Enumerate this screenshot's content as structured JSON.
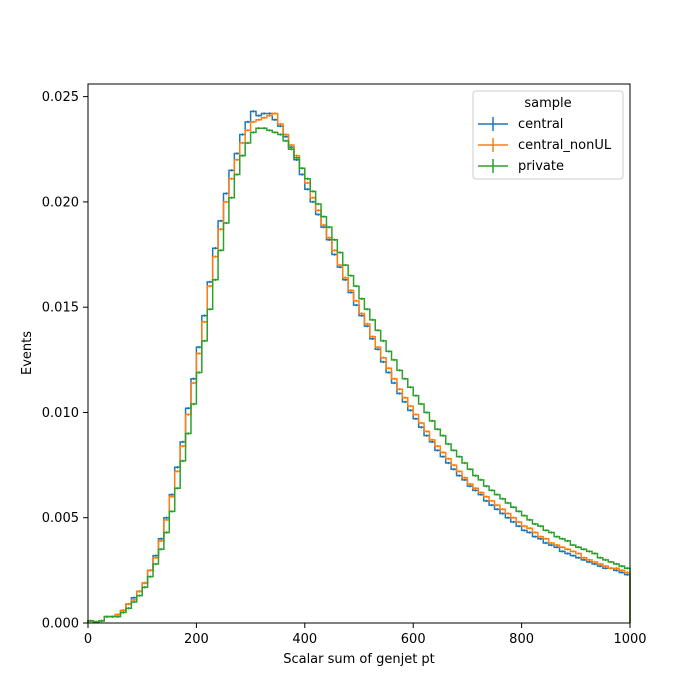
{
  "chart_data": {
    "type": "line",
    "title": "",
    "xlabel": "Scalar sum of genjet pt",
    "ylabel": "Events",
    "xlim": [
      0,
      1000
    ],
    "ylim": [
      0,
      0.0256
    ],
    "grid": false,
    "x_ticks": [
      {
        "value": 0,
        "label": "0"
      },
      {
        "value": 200,
        "label": "200"
      },
      {
        "value": 400,
        "label": "400"
      },
      {
        "value": 600,
        "label": "600"
      },
      {
        "value": 800,
        "label": "800"
      },
      {
        "value": 1000,
        "label": "1000"
      }
    ],
    "y_ticks": [
      {
        "value": 0,
        "label": "0.000"
      },
      {
        "value": 0.005,
        "label": "0.005"
      },
      {
        "value": 0.01,
        "label": "0.010"
      },
      {
        "value": 0.015,
        "label": "0.015"
      },
      {
        "value": 0.02,
        "label": "0.020"
      },
      {
        "value": 0.025,
        "label": "0.025"
      }
    ],
    "legend": {
      "title": "sample",
      "position": "top-right"
    },
    "bin_edges": [
      0,
      10,
      20,
      30,
      40,
      50,
      60,
      70,
      80,
      90,
      100,
      110,
      120,
      130,
      140,
      150,
      160,
      170,
      180,
      190,
      200,
      210,
      220,
      230,
      240,
      250,
      260,
      270,
      280,
      290,
      300,
      310,
      320,
      330,
      340,
      350,
      360,
      370,
      380,
      390,
      400,
      410,
      420,
      430,
      440,
      450,
      460,
      470,
      480,
      490,
      500,
      510,
      520,
      530,
      540,
      550,
      560,
      570,
      580,
      590,
      600,
      610,
      620,
      630,
      640,
      650,
      660,
      670,
      680,
      690,
      700,
      710,
      720,
      730,
      740,
      750,
      760,
      770,
      780,
      790,
      800,
      810,
      820,
      830,
      840,
      850,
      860,
      870,
      880,
      890,
      900,
      910,
      920,
      930,
      940,
      950,
      960,
      970,
      980,
      990,
      1000
    ],
    "series": [
      {
        "name": "central",
        "color": "#1f77b4",
        "values": [
          0.0001,
          5e-05,
          0.0001,
          0.0003,
          0.0003,
          0.0004,
          0.0006,
          0.0009,
          0.0012,
          0.0015,
          0.0019,
          0.0025,
          0.0032,
          0.004,
          0.005,
          0.0061,
          0.0074,
          0.0086,
          0.0102,
          0.0116,
          0.0131,
          0.0146,
          0.0162,
          0.0178,
          0.0191,
          0.0204,
          0.0215,
          0.0223,
          0.0232,
          0.0238,
          0.0243,
          0.0241,
          0.0242,
          0.0242,
          0.0239,
          0.0236,
          0.0231,
          0.0226,
          0.022,
          0.0213,
          0.0206,
          0.02,
          0.0194,
          0.0188,
          0.0182,
          0.0175,
          0.0169,
          0.0163,
          0.0157,
          0.0151,
          0.0146,
          0.0141,
          0.0135,
          0.013,
          0.0124,
          0.0119,
          0.0114,
          0.0109,
          0.0105,
          0.0101,
          0.0097,
          0.0093,
          0.0089,
          0.0086,
          0.0082,
          0.0079,
          0.0076,
          0.0073,
          0.007,
          0.0068,
          0.0065,
          0.0063,
          0.0061,
          0.0058,
          0.0056,
          0.0054,
          0.0052,
          0.005,
          0.0048,
          0.0046,
          0.0044,
          0.0043,
          0.0041,
          0.004,
          0.0038,
          0.0037,
          0.0036,
          0.0034,
          0.0033,
          0.0032,
          0.0031,
          0.003,
          0.0029,
          0.0028,
          0.0027,
          0.0026,
          0.0026,
          0.0025,
          0.0024,
          0.0023
        ]
      },
      {
        "name": "central_nonUL",
        "color": "#ff7f0e",
        "values": [
          0.0001,
          5e-05,
          0.0001,
          0.0003,
          0.0003,
          0.0004,
          0.0006,
          0.0009,
          0.0011,
          0.0015,
          0.0019,
          0.0025,
          0.0031,
          0.0039,
          0.0049,
          0.006,
          0.0072,
          0.0084,
          0.0099,
          0.0114,
          0.0128,
          0.0143,
          0.016,
          0.0174,
          0.0187,
          0.02,
          0.0211,
          0.022,
          0.0228,
          0.0234,
          0.0238,
          0.0239,
          0.024,
          0.0241,
          0.0242,
          0.0237,
          0.0232,
          0.0227,
          0.0222,
          0.0216,
          0.0209,
          0.0202,
          0.0196,
          0.0189,
          0.0183,
          0.0177,
          0.017,
          0.0164,
          0.0158,
          0.0153,
          0.0147,
          0.0142,
          0.0136,
          0.0131,
          0.0126,
          0.0121,
          0.0116,
          0.0111,
          0.0107,
          0.0103,
          0.0099,
          0.0095,
          0.0091,
          0.0087,
          0.0084,
          0.0081,
          0.0078,
          0.0075,
          0.0072,
          0.0069,
          0.0066,
          0.0064,
          0.0062,
          0.006,
          0.0058,
          0.0056,
          0.0054,
          0.0052,
          0.005,
          0.0048,
          0.0046,
          0.0045,
          0.0043,
          0.0041,
          0.004,
          0.0038,
          0.0037,
          0.0036,
          0.0035,
          0.0034,
          0.0033,
          0.0031,
          0.003,
          0.0029,
          0.0028,
          0.0027,
          0.0026,
          0.0026,
          0.0025,
          0.0024
        ]
      },
      {
        "name": "private",
        "color": "#2ca02c",
        "values": [
          0.0001,
          5e-05,
          0.0001,
          0.0003,
          0.0003,
          0.0003,
          0.0005,
          0.0007,
          0.001,
          0.0013,
          0.0017,
          0.0022,
          0.0028,
          0.0035,
          0.0043,
          0.0053,
          0.0064,
          0.0077,
          0.009,
          0.0104,
          0.0119,
          0.0134,
          0.0149,
          0.0163,
          0.0177,
          0.019,
          0.0202,
          0.0213,
          0.0222,
          0.0228,
          0.0233,
          0.0235,
          0.0235,
          0.0234,
          0.0233,
          0.0232,
          0.0229,
          0.0225,
          0.0221,
          0.0216,
          0.0211,
          0.0205,
          0.0199,
          0.0193,
          0.0188,
          0.0182,
          0.0176,
          0.017,
          0.0165,
          0.016,
          0.0154,
          0.0149,
          0.0144,
          0.0139,
          0.0134,
          0.0129,
          0.0125,
          0.012,
          0.0116,
          0.0112,
          0.0108,
          0.0104,
          0.01,
          0.0096,
          0.0092,
          0.0089,
          0.0085,
          0.0082,
          0.0079,
          0.0076,
          0.0073,
          0.007,
          0.0068,
          0.0065,
          0.0063,
          0.0061,
          0.0059,
          0.0057,
          0.0055,
          0.0053,
          0.0051,
          0.0049,
          0.0047,
          0.0046,
          0.0044,
          0.0043,
          0.0041,
          0.004,
          0.0039,
          0.0037,
          0.0036,
          0.0035,
          0.0034,
          0.0033,
          0.0031,
          0.003,
          0.0029,
          0.0028,
          0.0027,
          0.0026
        ]
      }
    ]
  }
}
